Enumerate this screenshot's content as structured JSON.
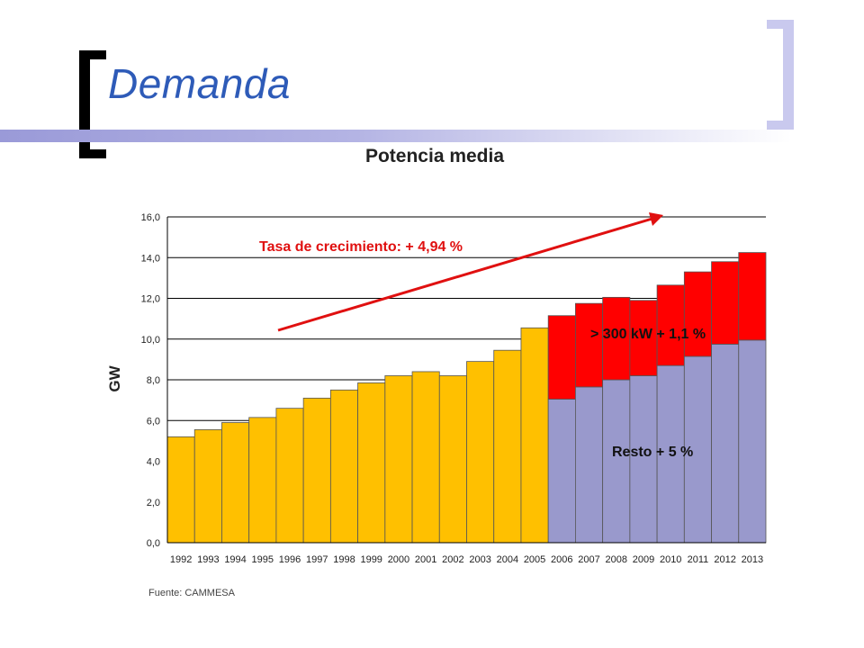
{
  "slide": {
    "title": "Demanda",
    "source": "Fuente: CAMMESA"
  },
  "colors": {
    "title": "#2e5bb8",
    "total_bars": "#ffc000",
    "large_users": "#ff0000",
    "rest": "#9999cc",
    "arrow": "#e01010",
    "annotation_text": "#e01010"
  },
  "chart_data": {
    "type": "bar",
    "title": "Potencia media",
    "ylabel": "GW",
    "xlabel": "",
    "ylim": [
      0,
      16
    ],
    "yticks": [
      "0,0",
      "2,0",
      "4,0",
      "6,0",
      "8,0",
      "10,0",
      "12,0",
      "14,0",
      "16,0"
    ],
    "grid": true,
    "categories": [
      "1992",
      "1993",
      "1994",
      "1995",
      "1996",
      "1997",
      "1998",
      "1999",
      "2000",
      "2001",
      "2002",
      "2003",
      "2004",
      "2005",
      "2006",
      "2007",
      "2008",
      "2009",
      "2010",
      "2011",
      "2012",
      "2013"
    ],
    "series": [
      {
        "values": [
          5.2,
          5.55,
          5.9,
          6.15,
          6.6,
          7.1,
          7.5,
          7.85,
          8.2,
          8.4,
          8.2,
          8.9,
          9.45,
          10.55,
          null,
          null,
          null,
          null,
          null,
          null,
          null,
          null
        ]
      },
      {
        "values": [
          null,
          null,
          null,
          null,
          null,
          null,
          null,
          null,
          null,
          null,
          null,
          null,
          null,
          null,
          7.05,
          7.65,
          8.0,
          8.2,
          8.7,
          9.15,
          9.75,
          9.95
        ]
      },
      {
        "values": [
          null,
          null,
          null,
          null,
          null,
          null,
          null,
          null,
          null,
          null,
          null,
          null,
          null,
          null,
          4.1,
          4.1,
          4.05,
          3.7,
          3.95,
          4.15,
          4.05,
          4.3
        ]
      }
    ],
    "annotations": {
      "growth": "Tasa de crecimiento: + 4,94 %",
      "large_users": "> 300 kW + 1,1 %",
      "rest": "Resto + 5 %"
    }
  }
}
